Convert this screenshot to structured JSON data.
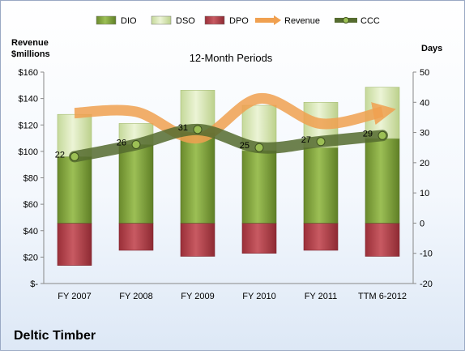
{
  "company": "Deltic Timber",
  "chart_data": {
    "type": "bar",
    "title": "12-Month Periods",
    "categories": [
      "FY 2007",
      "FY 2008",
      "FY 2009",
      "FY 2010",
      "FY 2011",
      "TTM 6-2012"
    ],
    "left_axis": {
      "title_line1": "Revenue",
      "title_line2": "$millions",
      "ylim": [
        0,
        160
      ],
      "ticks": [
        "$-",
        "$20",
        "$40",
        "$60",
        "$80",
        "$100",
        "$120",
        "$140",
        "$160"
      ]
    },
    "right_axis": {
      "title": "Days",
      "ylim": [
        -20,
        50
      ],
      "ticks": [
        "-20",
        "-10",
        "0",
        "10",
        "20",
        "30",
        "40",
        "50"
      ]
    },
    "legend": {
      "position": "top",
      "items": [
        "DIO",
        "DSO",
        "DPO",
        "Revenue",
        "CCC"
      ]
    },
    "series": [
      {
        "name": "DIO",
        "axis": "right",
        "values": [
          22,
          26,
          30,
          24,
          25,
          28
        ]
      },
      {
        "name": "DSO",
        "axis": "right",
        "values": [
          14,
          7,
          14,
          15,
          15,
          17
        ]
      },
      {
        "name": "DPO",
        "axis": "right",
        "values": [
          -14,
          -9,
          -11,
          -10,
          -9,
          -11
        ]
      },
      {
        "name": "Revenue",
        "axis": "left",
        "values": [
          129,
          130,
          110,
          140,
          121,
          130
        ]
      },
      {
        "name": "CCC",
        "axis": "right",
        "values": [
          22,
          26,
          31,
          25,
          27,
          29
        ]
      }
    ],
    "ccc_labels": [
      "22",
      "26",
      "31",
      "25",
      "27",
      "29"
    ],
    "colors": {
      "DIO": "#7d9e3c",
      "DSO": "#d9e8b4",
      "DPO": "#b23a44",
      "Revenue": "#f0a050",
      "CCC": "#556b2f"
    },
    "grid": false
  }
}
